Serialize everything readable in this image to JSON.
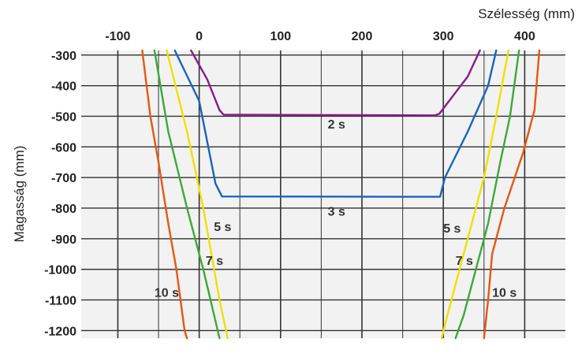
{
  "chart_data": {
    "type": "line",
    "title": "",
    "xlabel": "Szélesség (mm)",
    "ylabel": "Magasság (mm)",
    "xlim": [
      -145,
      450
    ],
    "ylim": [
      -1225,
      -285
    ],
    "x_ticks": [
      {
        "value": -100,
        "label": "-100"
      },
      {
        "value": 0,
        "label": "0"
      },
      {
        "value": 100,
        "label": "100"
      },
      {
        "value": 200,
        "label": "200"
      },
      {
        "value": 300,
        "label": "300"
      },
      {
        "value": 400,
        "label": "400"
      }
    ],
    "y_ticks": [
      {
        "value": -300,
        "label": "-300"
      },
      {
        "value": -400,
        "label": "-400"
      },
      {
        "value": -500,
        "label": "-500"
      },
      {
        "value": -600,
        "label": "-600"
      },
      {
        "value": -700,
        "label": "-700"
      },
      {
        "value": -800,
        "label": "-800"
      },
      {
        "value": -900,
        "label": "-900"
      },
      {
        "value": -1000,
        "label": "-1000"
      },
      {
        "value": -1100,
        "label": "-1100"
      },
      {
        "value": -1200,
        "label": "-1200"
      }
    ],
    "grid": true,
    "x_axis_position": "top",
    "series": [
      {
        "color": "#8b1a8b",
        "segments": [
          [
            [
              -10,
              -285
            ],
            [
              10,
              -380
            ],
            [
              25,
              -480
            ],
            [
              30,
              -495
            ],
            [
              290,
              -497
            ],
            [
              295,
              -492
            ],
            [
              310,
              -440
            ],
            [
              330,
              -370
            ],
            [
              345,
              -285
            ]
          ]
        ]
      },
      {
        "color": "#1565c0",
        "segments": [
          [
            [
              -30,
              -285
            ],
            [
              0,
              -450
            ],
            [
              20,
              -720
            ],
            [
              28,
              -762
            ],
            [
              296,
              -763
            ],
            [
              302,
              -700
            ],
            [
              330,
              -550
            ],
            [
              355,
              -400
            ],
            [
              365,
              -285
            ]
          ]
        ]
      },
      {
        "color": "#f0e000",
        "segments": [
          [
            [
              -40,
              -285
            ],
            [
              -15,
              -550
            ],
            [
              5,
              -800
            ],
            [
              15,
              -950
            ],
            [
              25,
              -1100
            ],
            [
              35,
              -1225
            ]
          ],
          [
            [
              380,
              -285
            ],
            [
              365,
              -500
            ],
            [
              350,
              -700
            ],
            [
              335,
              -850
            ],
            [
              320,
              -1000
            ],
            [
              305,
              -1150
            ],
            [
              298,
              -1225
            ]
          ]
        ]
      },
      {
        "color": "#3aaa35",
        "segments": [
          [
            [
              -55,
              -285
            ],
            [
              -38,
              -550
            ],
            [
              -15,
              -800
            ],
            [
              5,
              -1000
            ],
            [
              25,
              -1225
            ]
          ],
          [
            [
              393,
              -285
            ],
            [
              382,
              -500
            ],
            [
              370,
              -650
            ],
            [
              355,
              -850
            ],
            [
              340,
              -1000
            ],
            [
              325,
              -1150
            ],
            [
              315,
              -1225
            ]
          ]
        ]
      },
      {
        "color": "#e8570e",
        "segments": [
          [
            [
              -70,
              -285
            ],
            [
              -60,
              -500
            ],
            [
              -50,
              -650
            ],
            [
              -38,
              -850
            ],
            [
              -28,
              -1000
            ],
            [
              -18,
              -1200
            ],
            [
              -15,
              -1225
            ]
          ],
          [
            [
              418,
              -285
            ],
            [
              412,
              -480
            ],
            [
              398,
              -620
            ],
            [
              375,
              -800
            ],
            [
              360,
              -950
            ],
            [
              355,
              -1100
            ],
            [
              350,
              -1225
            ]
          ]
        ]
      }
    ],
    "annotations": [
      {
        "text": "2 s",
        "x": 158,
        "y": -540
      },
      {
        "text": "3 s",
        "x": 158,
        "y": -825
      },
      {
        "text": "5 s",
        "x": 18,
        "y": -875
      },
      {
        "text": "5 s",
        "x": 300,
        "y": -880
      },
      {
        "text": "7 s",
        "x": 8,
        "y": -985
      },
      {
        "text": "7 s",
        "x": 315,
        "y": -985
      },
      {
        "text": "10 s",
        "x": -55,
        "y": -1090
      },
      {
        "text": "10 s",
        "x": 360,
        "y": -1090
      }
    ]
  }
}
